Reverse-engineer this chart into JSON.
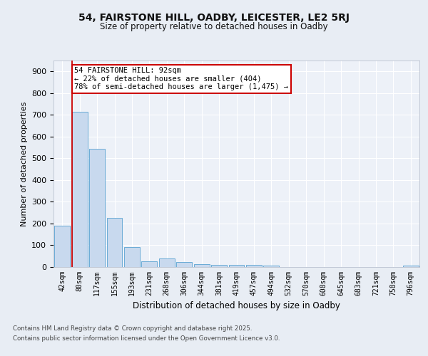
{
  "title1": "54, FAIRSTONE HILL, OADBY, LEICESTER, LE2 5RJ",
  "title2": "Size of property relative to detached houses in Oadby",
  "xlabel": "Distribution of detached houses by size in Oadby",
  "ylabel": "Number of detached properties",
  "bin_labels": [
    "42sqm",
    "80sqm",
    "117sqm",
    "155sqm",
    "193sqm",
    "231sqm",
    "268sqm",
    "306sqm",
    "344sqm",
    "381sqm",
    "419sqm",
    "457sqm",
    "494sqm",
    "532sqm",
    "570sqm",
    "608sqm",
    "645sqm",
    "683sqm",
    "721sqm",
    "758sqm",
    "796sqm"
  ],
  "bar_heights": [
    190,
    715,
    545,
    225,
    92,
    25,
    38,
    22,
    12,
    10,
    10,
    10,
    8,
    0,
    0,
    0,
    0,
    0,
    0,
    0,
    8
  ],
  "bar_color": "#c8d9ee",
  "bar_edge_color": "#6aabd6",
  "vline_color": "#cc0000",
  "vline_x_idx": 1,
  "annotation_title": "54 FAIRSTONE HILL: 92sqm",
  "annotation_line1": "← 22% of detached houses are smaller (404)",
  "annotation_line2": "78% of semi-detached houses are larger (1,475) →",
  "annotation_box_color": "#ffffff",
  "annotation_box_edge": "#cc0000",
  "ylim": [
    0,
    950
  ],
  "yticks": [
    0,
    100,
    200,
    300,
    400,
    500,
    600,
    700,
    800,
    900
  ],
  "footer1": "Contains HM Land Registry data © Crown copyright and database right 2025.",
  "footer2": "Contains public sector information licensed under the Open Government Licence v3.0.",
  "bg_color": "#e8edf4",
  "plot_bg_color": "#edf1f8"
}
